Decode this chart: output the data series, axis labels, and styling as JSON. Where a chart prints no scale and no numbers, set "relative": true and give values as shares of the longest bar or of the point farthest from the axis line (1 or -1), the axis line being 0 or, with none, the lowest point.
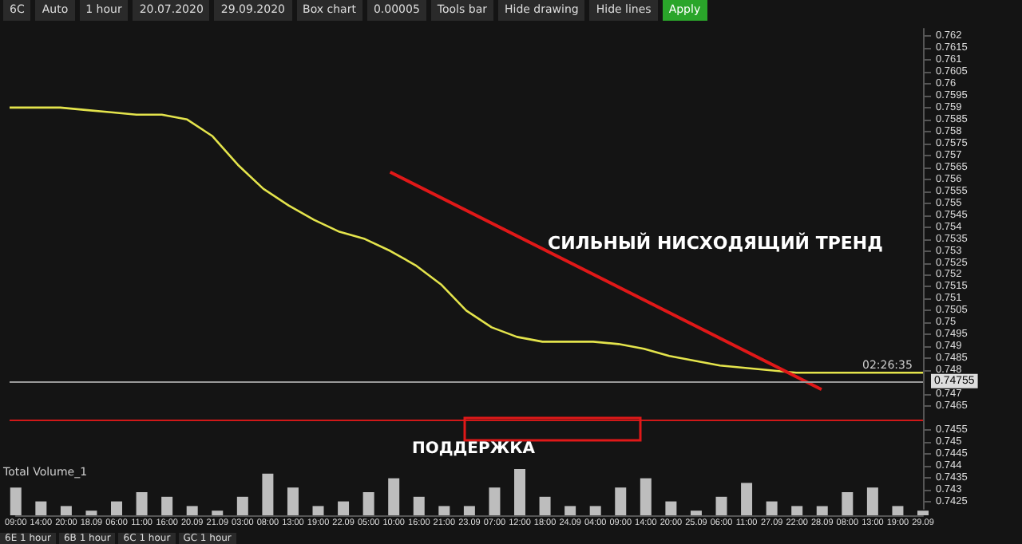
{
  "chart_data": [
    {
      "type": "line",
      "categories": [
        "09:00",
        "14:00",
        "20:00",
        "18.09",
        "06:00",
        "11:00",
        "16:00",
        "20.09",
        "21.09",
        "03:00",
        "08:00",
        "13:00",
        "19:00",
        "22.09",
        "05:00",
        "10:00",
        "16:00",
        "21:00",
        "23.09",
        "07:00",
        "12:00",
        "18:00",
        "24.09",
        "04:00",
        "09:00",
        "14:00",
        "20:00",
        "25.09",
        "06:00",
        "11:00",
        "27.09",
        "22:00",
        "28.09",
        "08:00",
        "13:00",
        "19:00",
        "29.09"
      ],
      "series": [
        {
          "color": "#e4e44c",
          "values": [
            0.759,
            0.759,
            0.759,
            0.7589,
            0.7588,
            0.7587,
            0.7587,
            0.7585,
            0.7578,
            0.7566,
            0.7556,
            0.7549,
            0.7543,
            0.7538,
            0.7535,
            0.753,
            0.7524,
            0.7516,
            0.7505,
            0.7498,
            0.7494,
            0.7492,
            0.7492,
            0.7492,
            0.7491,
            0.7489,
            0.7486,
            0.7484,
            0.7482,
            0.7481,
            0.748,
            0.7479,
            0.7479,
            0.7479,
            0.7479,
            0.7479,
            0.7479
          ]
        },
        {
          "type": "line",
          "color": "#e01818",
          "x": [
            "10:00",
            "28.09"
          ],
          "values": [
            0.7563,
            0.7472
          ]
        }
      ],
      "ylim": [
        0.7422,
        0.7623
      ],
      "yticks": [
        0.7425,
        0.743,
        0.7435,
        0.744,
        0.7445,
        0.745,
        0.7455,
        0.7465,
        0.747,
        0.748,
        0.7485,
        0.749,
        0.7495,
        0.75,
        0.7505,
        0.751,
        0.7515,
        0.752,
        0.7525,
        0.753,
        0.7535,
        0.754,
        0.7545,
        0.755,
        0.7555,
        0.756,
        0.7565,
        0.757,
        0.7575,
        0.758,
        0.7585,
        0.759,
        0.7595,
        0.76,
        0.7605,
        0.761,
        0.7615,
        0.762
      ],
      "ref_lines": [
        {
          "axis": "y",
          "value": 0.74755,
          "label": "0.74755",
          "color": "#9a9a9a"
        },
        {
          "axis": "y",
          "value": 0.7459,
          "color": "#d01818"
        }
      ],
      "annotations": [
        "СИЛЬНЫЙ НИСХОДЯЩИЙ ТРЕНД",
        "ПОДДЕРЖКА",
        "02:26:35",
        "Total Volume_1",
        "6C",
        "Auto",
        "1 hour",
        "20.07.2020",
        "29.09.2020",
        "Box chart",
        "0.00005",
        "Tools bar",
        "Hide drawing",
        "Hide lines",
        "Apply",
        "6E 1 hour",
        "6B 1 hour",
        "6C 1 hour",
        "GC 1 hour"
      ],
      "marker": "none",
      "line_style": "solid",
      "tick_labels": "y"
    },
    {
      "type": "bar",
      "relative": true,
      "color": "#bdbdbd",
      "categories": [
        "09:00",
        "14:00",
        "20:00",
        "18.09",
        "06:00",
        "11:00",
        "16:00",
        "20.09",
        "21.09",
        "03:00",
        "08:00",
        "13:00",
        "19:00",
        "22.09",
        "05:00",
        "10:00",
        "16:00",
        "21:00",
        "23.09",
        "07:00",
        "12:00",
        "18:00",
        "24.09",
        "04:00",
        "09:00",
        "14:00",
        "20:00",
        "25.09",
        "06:00",
        "11:00",
        "27.09",
        "22:00",
        "28.09",
        "08:00",
        "13:00",
        "19:00",
        "29.09"
      ],
      "values": [
        0.6,
        0.3,
        0.2,
        0.1,
        0.3,
        0.5,
        0.4,
        0.2,
        0.1,
        0.4,
        0.9,
        0.6,
        0.2,
        0.3,
        0.5,
        0.8,
        0.4,
        0.2,
        0.2,
        0.6,
        1,
        0.4,
        0.2,
        0.2,
        0.6,
        0.8,
        0.3,
        0.1,
        0.4,
        0.7,
        0.3,
        0.2,
        0.2,
        0.5,
        0.6,
        0.2,
        0.1
      ],
      "tick_labels": "x"
    }
  ]
}
